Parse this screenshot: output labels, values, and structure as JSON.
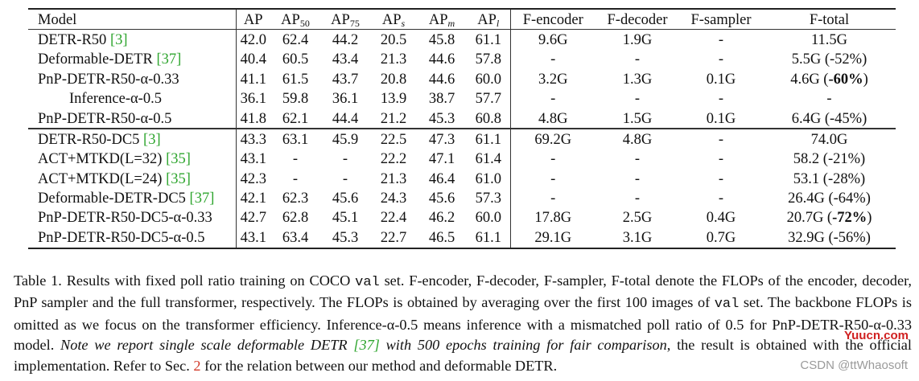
{
  "headers": {
    "model": "Model",
    "ap": "AP",
    "ap50_base": "AP",
    "ap50_sub": "50",
    "ap75_base": "AP",
    "ap75_sub": "75",
    "aps_base": "AP",
    "aps_sub": "s",
    "apm_base": "AP",
    "apm_sub": "m",
    "apl_base": "AP",
    "apl_sub": "l",
    "f_encoder": "F-encoder",
    "f_decoder": "F-decoder",
    "f_sampler": "F-sampler",
    "f_total": "F-total"
  },
  "rows": [
    {
      "model": "DETR-R50 ",
      "cite": "[3]",
      "ap": "42.0",
      "ap50": "62.4",
      "ap75": "44.2",
      "aps": "20.5",
      "apm": "45.8",
      "apl": "61.1",
      "fenc": "9.6G",
      "fdec": "1.9G",
      "fsam": "-",
      "ftot": "11.5G"
    },
    {
      "model": "Deformable-DETR ",
      "cite": "[37]",
      "ap": "40.4",
      "ap50": "60.5",
      "ap75": "43.4",
      "aps": "21.3",
      "apm": "44.6",
      "apl": "57.8",
      "fenc": "-",
      "fdec": "-",
      "fsam": "-",
      "ftot": "5.5G (-52%)"
    },
    {
      "model": "PnP-DETR-R50-α-0.33",
      "ap": "41.1",
      "ap50": "61.5",
      "ap75": "43.7",
      "aps": "20.8",
      "apm": "44.6",
      "apl": "60.0",
      "fenc": "3.2G",
      "fdec": "1.3G",
      "fsam": "0.1G",
      "ftot_pre": "4.6G (",
      "ftot_bold": "-60%",
      "ftot_post": ")"
    },
    {
      "model": "Inference-α-0.5",
      "ap": "36.1",
      "ap50": "59.8",
      "ap75": "36.1",
      "aps": "13.9",
      "apm": "38.7",
      "apl": "57.7",
      "fenc": "-",
      "fdec": "-",
      "fsam": "-",
      "ftot": "-"
    },
    {
      "model": "PnP-DETR-R50-α-0.5",
      "ap": "41.8",
      "ap50": "62.1",
      "ap75": "44.4",
      "aps": "21.2",
      "apm": "45.3",
      "apl": "60.8",
      "fenc": "4.8G",
      "fdec": "1.5G",
      "fsam": "0.1G",
      "ftot": "6.4G (-45%)"
    },
    {
      "model": "DETR-R50-DC5 ",
      "cite": "[3]",
      "ap": "43.3",
      "ap50": "63.1",
      "ap75": "45.9",
      "aps": "22.5",
      "apm": "47.3",
      "apl": "61.1",
      "fenc": "69.2G",
      "fdec": "4.8G",
      "fsam": "-",
      "ftot": "74.0G"
    },
    {
      "model": "ACT+MTKD(L=32) ",
      "cite": "[35]",
      "ap": "43.1",
      "ap50": "-",
      "ap75": "-",
      "aps": "22.2",
      "apm": "47.1",
      "apl": "61.4",
      "fenc": "-",
      "fdec": "-",
      "fsam": "-",
      "ftot": "58.2 (-21%)"
    },
    {
      "model": "ACT+MTKD(L=24) ",
      "cite": "[35]",
      "ap": "42.3",
      "ap50": "-",
      "ap75": "-",
      "aps": "21.3",
      "apm": "46.4",
      "apl": "61.0",
      "fenc": "-",
      "fdec": "-",
      "fsam": "-",
      "ftot": "53.1 (-28%)"
    },
    {
      "model": "Deformable-DETR-DC5 ",
      "cite": "[37]",
      "ap": "42.1",
      "ap50": "62.3",
      "ap75": "45.6",
      "aps": "24.3",
      "apm": "45.6",
      "apl": "57.3",
      "fenc": "-",
      "fdec": "-",
      "fsam": "-",
      "ftot": "26.4G (-64%)"
    },
    {
      "model": "PnP-DETR-R50-DC5-α-0.33",
      "ap": "42.7",
      "ap50": "62.8",
      "ap75": "45.1",
      "aps": "22.4",
      "apm": "46.2",
      "apl": "60.0",
      "fenc": "17.8G",
      "fdec": "2.5G",
      "fsam": "0.4G",
      "ftot_pre": "20.7G (",
      "ftot_bold": "-72%",
      "ftot_post": ")"
    },
    {
      "model": "PnP-DETR-R50-DC5-α-0.5",
      "ap": "43.1",
      "ap50": "63.4",
      "ap75": "45.3",
      "aps": "22.7",
      "apm": "46.5",
      "apl": "61.1",
      "fenc": "29.1G",
      "fdec": "3.1G",
      "fsam": "0.7G",
      "ftot": "32.9G (-56%)"
    }
  ],
  "caption": {
    "s1": "Table 1. Results with fixed poll ratio training on COCO ",
    "val1": "val",
    "s2": " set. F-encoder, F-decoder, F-sampler, F-total denote the FLOPs of the encoder, decoder, PnP sampler and the full transformer, respectively. The FLOPs is obtained by averaging over the first 100 images of ",
    "val2": "val",
    "s3": " set. The backbone FLOPs is omitted as we focus on the transformer efficiency. Inference-α-0.5 means inference with a mismatched poll ratio of 0.5 for PnP-DETR-R50-α-0.33 model. ",
    "it1": "Note we report single scale deformable DETR ",
    "it_ref": "[37]",
    "it2": " with 500 epochs training for fair comparison",
    "s4": ", the result is obtained with the official implementation. Refer to Sec. ",
    "sec_ref": "2",
    "s5": " for the relation between our method and deformable DETR."
  },
  "watermarks": {
    "site": "Yuucn.com",
    "csdn": "CSDN @ttWhaosoft"
  },
  "colors": {
    "citation": "#2ea52e",
    "section_ref": "#d23a2a",
    "watermark_site": "#d02020"
  }
}
